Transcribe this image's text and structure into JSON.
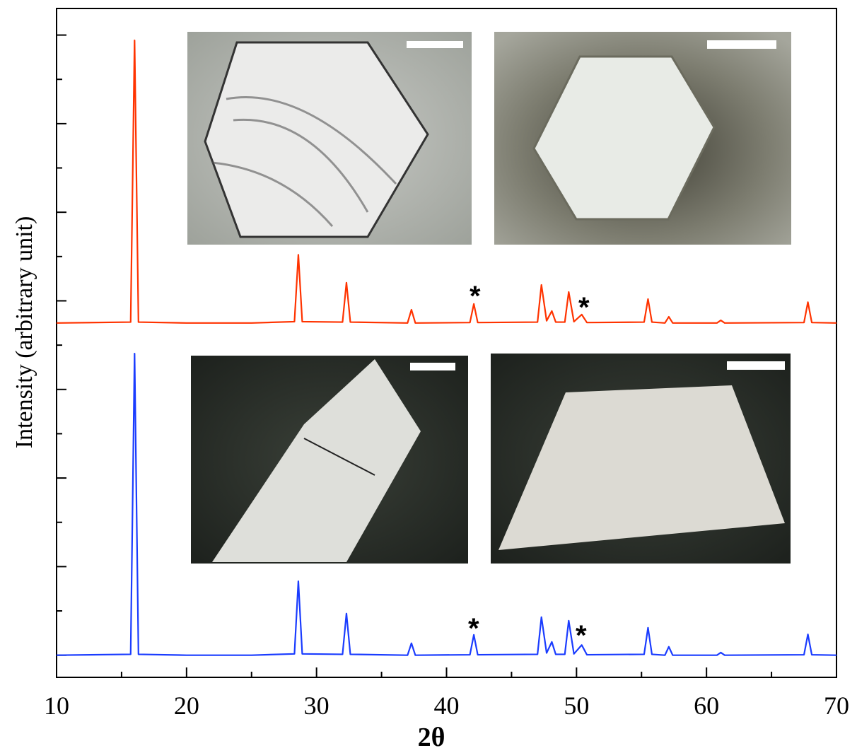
{
  "chart_data": {
    "type": "line",
    "xlabel": "2θ",
    "ylabel": "Intensity (arbitrary unit)",
    "xlim": [
      10,
      70
    ],
    "ylim": [
      -0.5,
      14.6
    ],
    "xticks": [
      10,
      20,
      30,
      40,
      50,
      60,
      70
    ],
    "xminorticks": [
      15,
      25,
      35,
      45,
      55,
      65
    ],
    "yticks": [
      0,
      2,
      4,
      6,
      8,
      10,
      12,
      14
    ],
    "yminorticks": [
      1,
      3,
      5,
      7,
      9,
      11,
      13
    ],
    "x": [
      10,
      15.7,
      16.0,
      16.3,
      20,
      25,
      28.3,
      28.6,
      28.9,
      32.0,
      32.3,
      32.6,
      37.0,
      37.3,
      37.6,
      41.8,
      42.1,
      42.4,
      47.0,
      47.3,
      47.7,
      48.1,
      48.4,
      49.1,
      49.4,
      49.8,
      50.4,
      50.8,
      55.2,
      55.5,
      55.8,
      56.8,
      57.1,
      57.4,
      60.8,
      61.1,
      61.4,
      67.5,
      67.8,
      68.1,
      70
    ],
    "series": [
      {
        "color": "#ff3300",
        "values": [
          7.5,
          7.52,
          13.88,
          7.52,
          7.5,
          7.5,
          7.53,
          9.04,
          7.53,
          7.52,
          8.41,
          7.52,
          7.5,
          7.8,
          7.5,
          7.51,
          7.93,
          7.51,
          7.52,
          8.36,
          7.55,
          7.77,
          7.52,
          7.52,
          8.2,
          7.53,
          7.69,
          7.51,
          7.52,
          8.04,
          7.52,
          7.5,
          7.64,
          7.5,
          7.5,
          7.56,
          7.5,
          7.51,
          7.97,
          7.51,
          7.5
        ]
      },
      {
        "color": "#1a3cff",
        "values": [
          0,
          0.02,
          6.81,
          0.02,
          0,
          0,
          0.03,
          1.67,
          0.03,
          0.02,
          0.94,
          0.02,
          0,
          0.27,
          0,
          0.01,
          0.46,
          0.01,
          0.02,
          0.86,
          0.05,
          0.3,
          0.02,
          0.02,
          0.78,
          0.03,
          0.23,
          0.01,
          0.02,
          0.62,
          0.02,
          0,
          0.19,
          0,
          0,
          0.06,
          0,
          0.01,
          0.47,
          0.01,
          0
        ]
      }
    ],
    "annotations": [
      "*",
      "*",
      "*",
      "*"
    ]
  }
}
